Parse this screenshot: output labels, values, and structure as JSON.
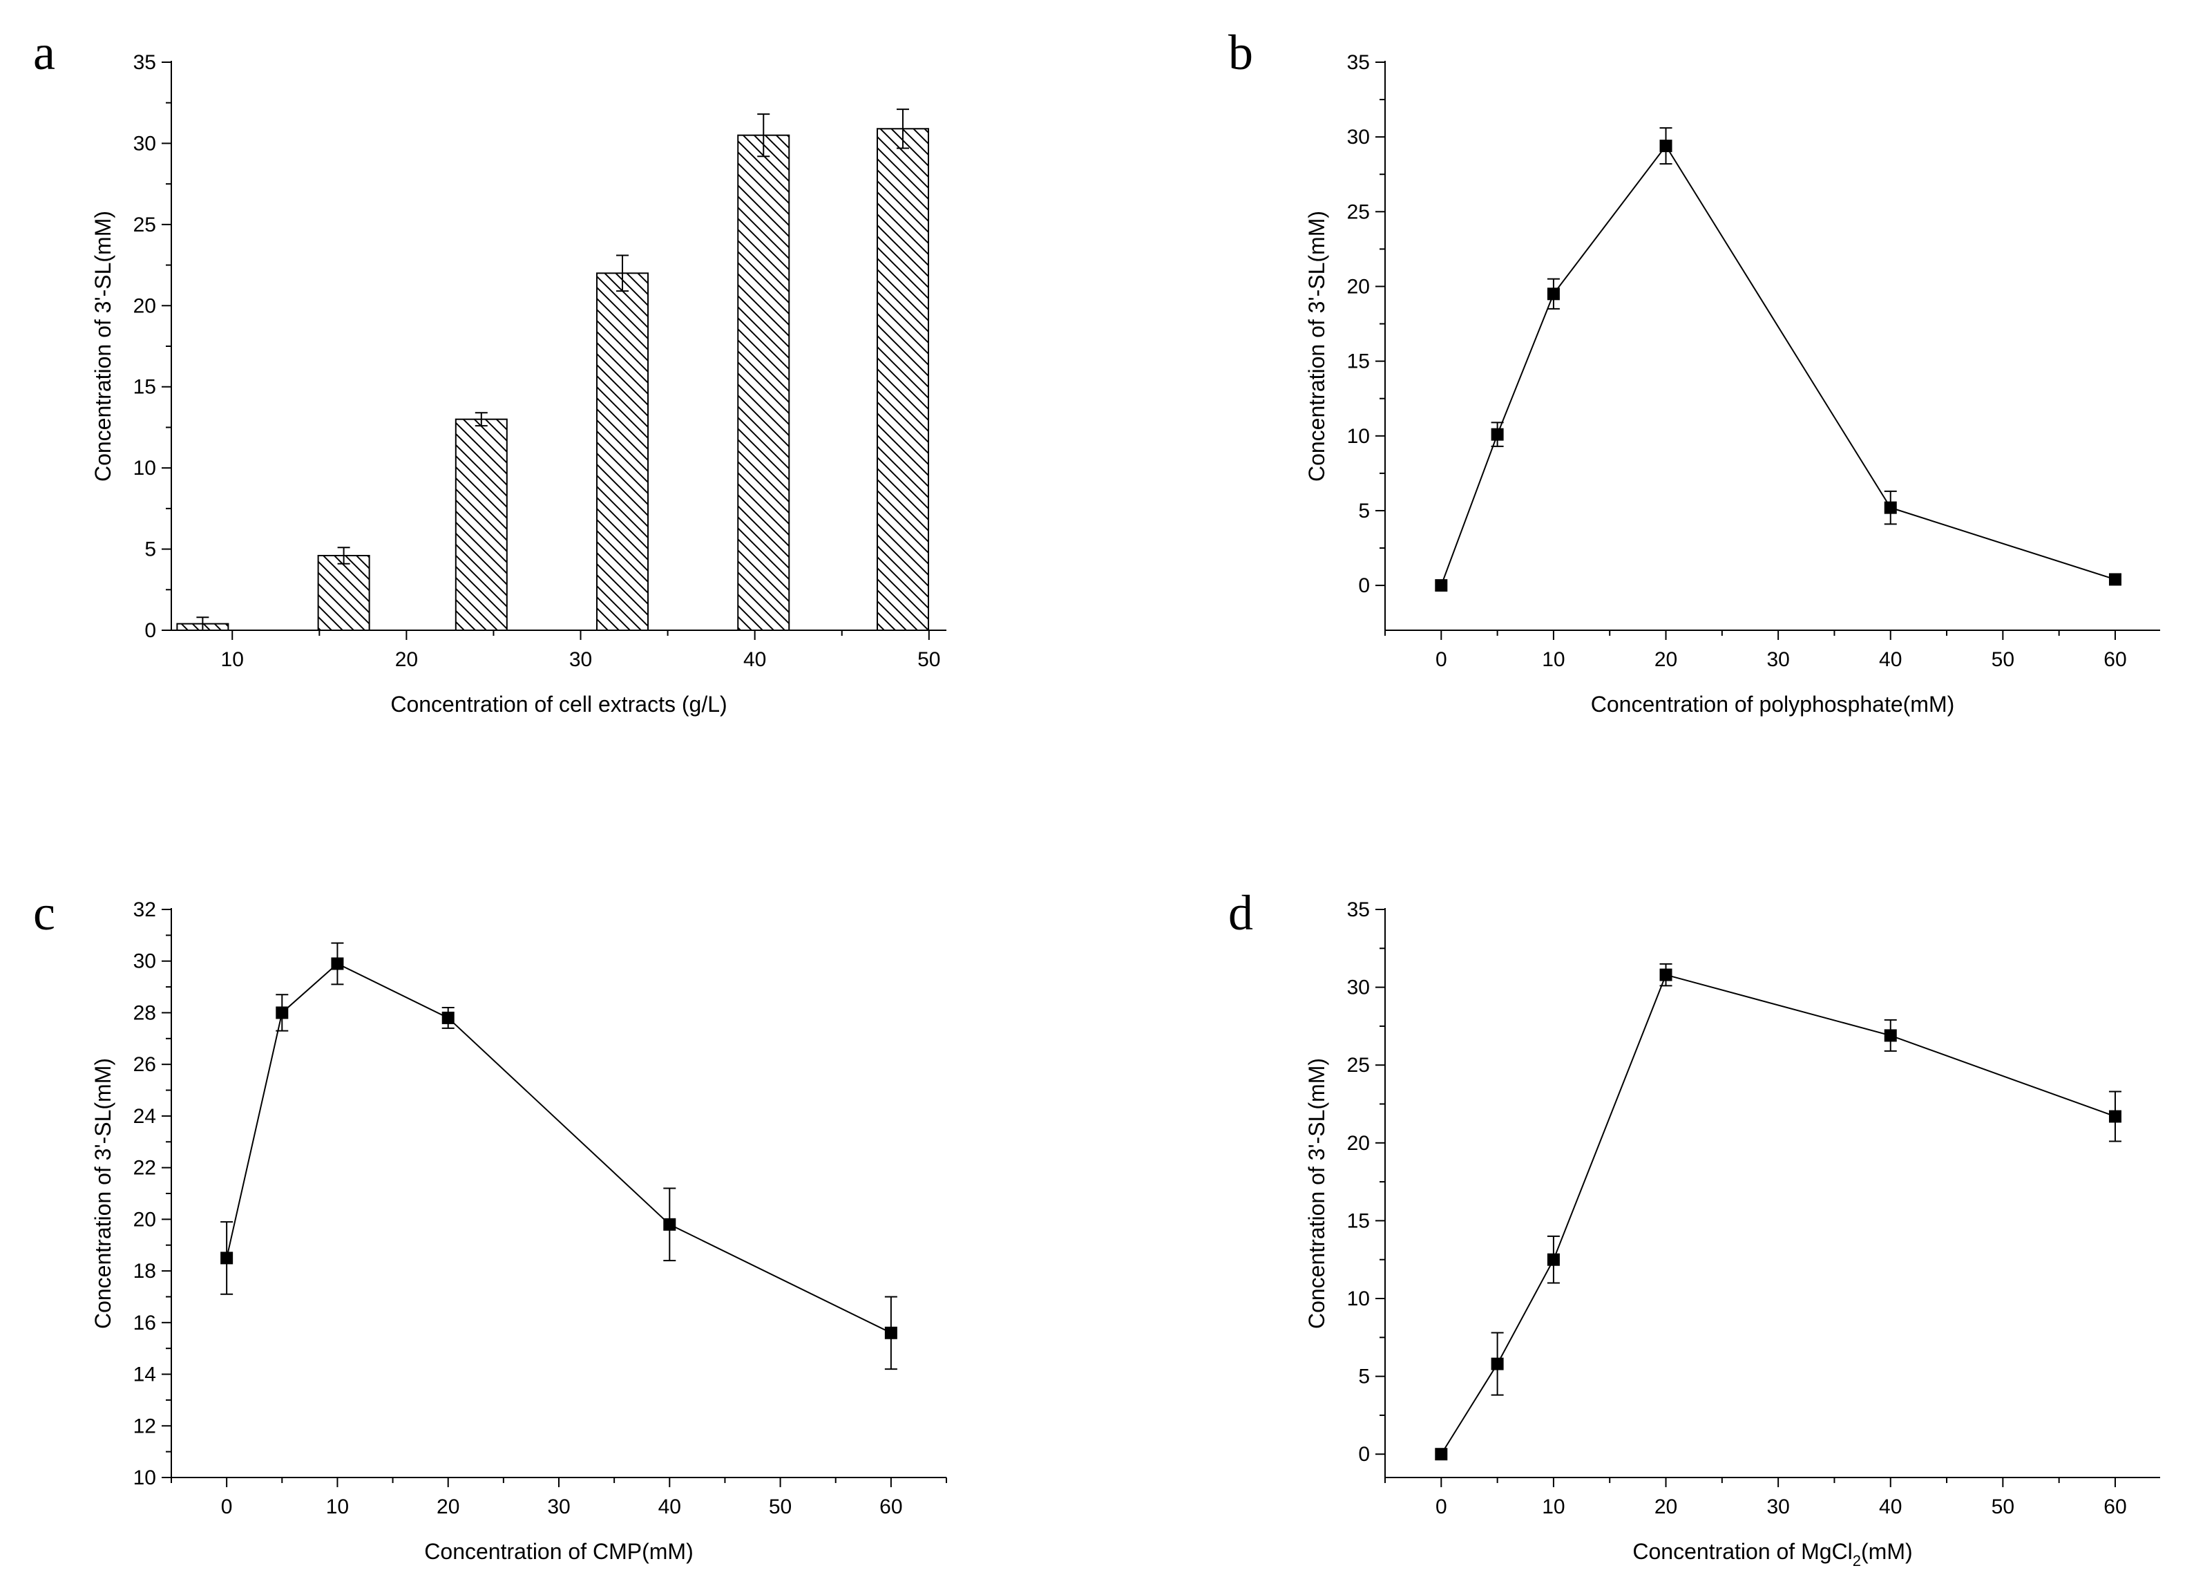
{
  "chart_data": [
    {
      "panel": "a",
      "type": "bar",
      "pattern": "diagonal-hatch",
      "title": "",
      "xlabel": "Concentration of cell extracts (g/L)",
      "ylabel": "Concentration of 3'-SL(mM)",
      "xlim": [
        6.5,
        51
      ],
      "ylim": [
        0,
        35
      ],
      "xticks": [
        10,
        20,
        30,
        40,
        50
      ],
      "yticks": [
        0,
        5,
        10,
        15,
        20,
        25,
        30,
        35
      ],
      "x": [
        8.3,
        16.4,
        24.3,
        32.4,
        40.5,
        48.5
      ],
      "values": [
        0.4,
        4.6,
        13.0,
        22.0,
        30.5,
        30.9
      ],
      "errors": [
        0.4,
        0.5,
        0.4,
        1.1,
        1.3,
        1.2
      ]
    },
    {
      "panel": "b",
      "type": "line",
      "marker": "square",
      "title": "",
      "xlabel": "Concentration of polyphosphate(mM)",
      "ylabel": "Concentration of 3'-SL(mM)",
      "xlim": [
        -5,
        64
      ],
      "ylim": [
        -3,
        35
      ],
      "xticks": [
        0,
        10,
        20,
        30,
        40,
        50,
        60
      ],
      "yticks": [
        0,
        5,
        10,
        15,
        20,
        25,
        30,
        35
      ],
      "x": [
        0,
        5,
        10,
        20,
        40,
        60
      ],
      "values": [
        0,
        10.1,
        19.5,
        29.4,
        5.2,
        0.4
      ],
      "errors": [
        0,
        0.8,
        1.0,
        1.2,
        1.1,
        0
      ]
    },
    {
      "panel": "c",
      "type": "line",
      "marker": "square",
      "title": "",
      "xlabel": "Concentration of CMP(mM)",
      "ylabel": "Concentration of 3'-SL(mM)",
      "xlim": [
        -5,
        65
      ],
      "ylim": [
        10,
        32
      ],
      "xticks": [
        0,
        10,
        20,
        30,
        40,
        50,
        60
      ],
      "yticks": [
        10,
        12,
        14,
        16,
        18,
        20,
        22,
        24,
        26,
        28,
        30,
        32
      ],
      "x": [
        0,
        5,
        10,
        20,
        40,
        60
      ],
      "values": [
        18.5,
        28.0,
        29.9,
        27.8,
        19.8,
        15.6
      ],
      "errors": [
        1.4,
        0.7,
        0.8,
        0.4,
        1.4,
        1.4
      ]
    },
    {
      "panel": "d",
      "type": "line",
      "marker": "square",
      "title": "",
      "xlabel": "Concentration of MgCl",
      "xlabel_sub": "2",
      "xlabel_suffix": "(mM)",
      "ylabel": "Concentration of 3'-SL(mM)",
      "xlim": [
        -5,
        64
      ],
      "ylim": [
        -1.5,
        35
      ],
      "xticks": [
        0,
        10,
        20,
        30,
        40,
        50,
        60
      ],
      "yticks": [
        0,
        5,
        10,
        15,
        20,
        25,
        30,
        35
      ],
      "x": [
        0,
        5,
        10,
        20,
        40,
        60
      ],
      "values": [
        0,
        5.8,
        12.5,
        30.8,
        26.9,
        21.7
      ],
      "errors": [
        0,
        2.0,
        1.5,
        0.7,
        1.0,
        1.6
      ]
    }
  ]
}
